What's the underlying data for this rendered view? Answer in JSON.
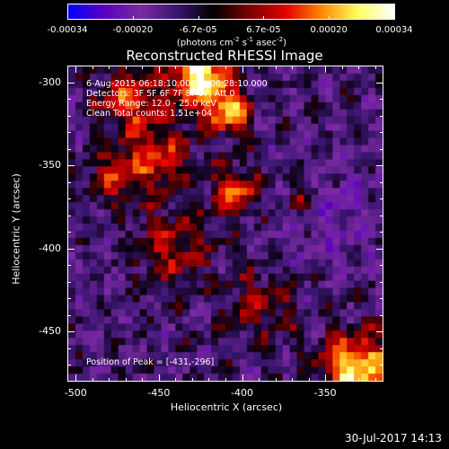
{
  "colorbar": {
    "ticks": [
      "-0.00034",
      "-0.00020",
      "-6.7e-05",
      "6.7e-05",
      "0.00020",
      "0.00034"
    ],
    "unit_prefix": "(photons cm",
    "unit_exp1": "-2",
    "unit_mid": " s",
    "unit_exp2": "-1",
    "unit_mid2": " asec",
    "unit_exp3": "-2",
    "unit_suffix": ")",
    "gradient_colors": [
      "#0000ff",
      "#5a00c0",
      "#7a2aa0",
      "#3a1570",
      "#000000",
      "#7a0000",
      "#e00000",
      "#ff8800",
      "#ffff60",
      "#ffffff"
    ]
  },
  "plot": {
    "title": "Reconstructed RHESSI Image",
    "xlabel": "Heliocentric X (arcsec)",
    "ylabel": "Heliocentric Y (arcsec)",
    "x_ticks": [
      "-500",
      "-450",
      "-400",
      "-350"
    ],
    "y_ticks": [
      "-300",
      "-350",
      "-400",
      "-450"
    ],
    "xlim": [
      -505,
      -315
    ],
    "ylim": [
      -480,
      -290
    ]
  },
  "overlay": {
    "line1": "6-Aug-2015 06:18:10.000 to 06:28:10.000",
    "line2": "Detectors: 3F 5F 6F 7F 8F 9F, Att 0",
    "line3": "Energy Range: 12.0 - 25.0 keV",
    "line4": "Clean    Total counts: 1.51e+04",
    "peak": "Position of Peak = [-431,-296]"
  },
  "footer": {
    "timestamp": "30-Jul-2017 14:13"
  },
  "chart_data": {
    "type": "heatmap",
    "title": "Reconstructed RHESSI Image",
    "xlabel": "Heliocentric X (arcsec)",
    "ylabel": "Heliocentric Y (arcsec)",
    "xlim": [
      -505,
      -315
    ],
    "ylim": [
      -480,
      -290
    ],
    "colorbar_range": [
      -0.00034,
      0.00034
    ],
    "peak_position": [
      -431,
      -296
    ],
    "grid": false
  }
}
